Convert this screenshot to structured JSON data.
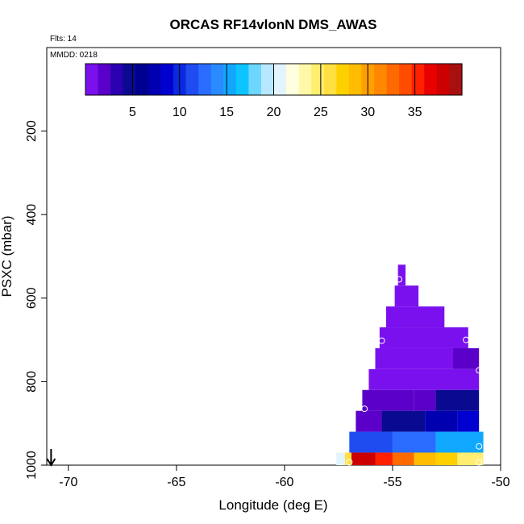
{
  "chart_data": {
    "type": "heatmap",
    "title": "ORCAS RF14vlonN DMS_AWAS",
    "flights_label": "Flts: 14",
    "date_label": "MMDD: 0218",
    "xlabel": "Longitude (deg E)",
    "ylabel": "PSXC (mbar)",
    "xlim": [
      -71,
      -50
    ],
    "ylim": [
      1000,
      0
    ],
    "x_ticks": [
      -70,
      -65,
      -60,
      -55,
      -50
    ],
    "x_tick_labels": [
      "-70",
      "-65",
      "-60",
      "-55",
      "-50"
    ],
    "y_ticks": [
      200,
      400,
      600,
      800,
      1000
    ],
    "y_tick_labels": [
      "200",
      "400",
      "600",
      "800",
      "1000"
    ],
    "colorbar": {
      "range": [
        0,
        40
      ],
      "ticks": [
        5,
        10,
        15,
        20,
        25,
        30,
        35
      ],
      "tick_labels": [
        "5",
        "10",
        "15",
        "20",
        "25",
        "30",
        "35"
      ],
      "colors": [
        "#7a10ee",
        "#5a00c8",
        "#2a00b0",
        "#0a0a90",
        "#000090",
        "#0000b0",
        "#0000d0",
        "#0a2ae0",
        "#1e4cf0",
        "#2a6cff",
        "#2a8aff",
        "#10a8ff",
        "#0cc4ff",
        "#6cd6ff",
        "#b8e8ff",
        "#e4f4ff",
        "#ffffe0",
        "#fff8a8",
        "#ffee70",
        "#ffe040",
        "#ffd000",
        "#ffbc00",
        "#ffa000",
        "#ff8800",
        "#ff6a00",
        "#ff4c00",
        "#ff2000",
        "#e80000",
        "#cc0000",
        "#a81010"
      ]
    },
    "cells": [
      {
        "x0": -54.75,
        "x1": -54.4,
        "p0": 520,
        "p1": 570,
        "v": 1
      },
      {
        "x0": -54.9,
        "x1": -53.8,
        "p0": 570,
        "p1": 620,
        "v": 1
      },
      {
        "x0": -55.3,
        "x1": -52.6,
        "p0": 620,
        "p1": 670,
        "v": 1
      },
      {
        "x0": -55.6,
        "x1": -51.5,
        "p0": 670,
        "p1": 720,
        "v": 1
      },
      {
        "x0": -55.8,
        "x1": -52.2,
        "p0": 720,
        "p1": 770,
        "v": 1
      },
      {
        "x0": -52.2,
        "x1": -51.0,
        "p0": 720,
        "p1": 770,
        "v": 2
      },
      {
        "x0": -56.1,
        "x1": -51.0,
        "p0": 770,
        "p1": 820,
        "v": 1
      },
      {
        "x0": -56.4,
        "x1": -54.0,
        "p0": 820,
        "p1": 870,
        "v": 1.5
      },
      {
        "x0": -54.0,
        "x1": -53.0,
        "p0": 820,
        "p1": 870,
        "v": 2.5
      },
      {
        "x0": -53.0,
        "x1": -51.0,
        "p0": 820,
        "p1": 870,
        "v": 4
      },
      {
        "x0": -56.7,
        "x1": -55.5,
        "p0": 870,
        "p1": 920,
        "v": 1.5
      },
      {
        "x0": -55.5,
        "x1": -53.5,
        "p0": 870,
        "p1": 920,
        "v": 5
      },
      {
        "x0": -53.5,
        "x1": -52.0,
        "p0": 870,
        "p1": 920,
        "v": 7
      },
      {
        "x0": -52.0,
        "x1": -51.0,
        "p0": 870,
        "p1": 920,
        "v": 9
      },
      {
        "x0": -57.0,
        "x1": -55.0,
        "p0": 920,
        "p1": 970,
        "v": 11
      },
      {
        "x0": -55.0,
        "x1": -53.0,
        "p0": 920,
        "p1": 970,
        "v": 13
      },
      {
        "x0": -53.0,
        "x1": -50.8,
        "p0": 920,
        "p1": 970,
        "v": 15
      },
      {
        "x0": -57.6,
        "x1": -57.2,
        "p0": 970,
        "p1": 1000,
        "v": 21
      },
      {
        "x0": -57.2,
        "x1": -56.9,
        "p0": 970,
        "p1": 1000,
        "v": 26
      },
      {
        "x0": -56.9,
        "x1": -55.8,
        "p0": 970,
        "p1": 1000,
        "v": 38
      },
      {
        "x0": -55.8,
        "x1": -55.0,
        "p0": 970,
        "p1": 1000,
        "v": 35
      },
      {
        "x0": -55.0,
        "x1": -54.0,
        "p0": 970,
        "p1": 1000,
        "v": 32
      },
      {
        "x0": -54.0,
        "x1": -53.0,
        "p0": 970,
        "p1": 1000,
        "v": 29
      },
      {
        "x0": -53.0,
        "x1": -52.0,
        "p0": 970,
        "p1": 1000,
        "v": 27
      },
      {
        "x0": -52.0,
        "x1": -50.8,
        "p0": 970,
        "p1": 1000,
        "v": 25
      }
    ],
    "sample_points": [
      {
        "x": -54.7,
        "p": 555
      },
      {
        "x": -55.5,
        "p": 702
      },
      {
        "x": -51.6,
        "p": 700
      },
      {
        "x": -51.0,
        "p": 773
      },
      {
        "x": -56.3,
        "p": 865
      },
      {
        "x": -51.0,
        "p": 955
      },
      {
        "x": -57.0,
        "p": 993
      },
      {
        "x": -51.0,
        "p": 993
      }
    ],
    "direction_marker": {
      "x": -70.8,
      "symbol": "arrow-down"
    },
    "grid": false,
    "legend": "top colorbar"
  }
}
